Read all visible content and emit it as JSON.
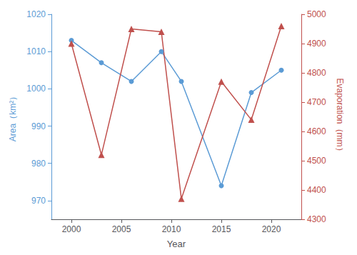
{
  "chart_data": {
    "type": "line",
    "x": [
      2000,
      2003,
      2006,
      2009,
      2011,
      2015,
      2018,
      2021
    ],
    "xlabel": "Year",
    "ylabel": "Area（km²）",
    "y2label": "Evaporation（mm）",
    "xlim": [
      1998,
      2023
    ],
    "xticks": [
      2000,
      2005,
      2010,
      2015,
      2020
    ],
    "ylim": [
      965,
      1020
    ],
    "yticks": [
      970,
      980,
      990,
      1000,
      1010,
      1020
    ],
    "y2lim": [
      4300,
      5000
    ],
    "y2ticks": [
      4300,
      4400,
      4500,
      4600,
      4700,
      4800,
      4900,
      5000
    ],
    "grid": false,
    "series": [
      {
        "color": "#5B9BD5",
        "marker": "circle",
        "values": [
          1013,
          1007,
          1002,
          1010,
          1002,
          974,
          999,
          1005
        ]
      },
      {
        "color": "#C0504D",
        "marker": "triangle",
        "axis": "y2",
        "values": [
          4900,
          4520,
          4950,
          4940,
          4370,
          4770,
          4640,
          4960
        ]
      }
    ]
  }
}
